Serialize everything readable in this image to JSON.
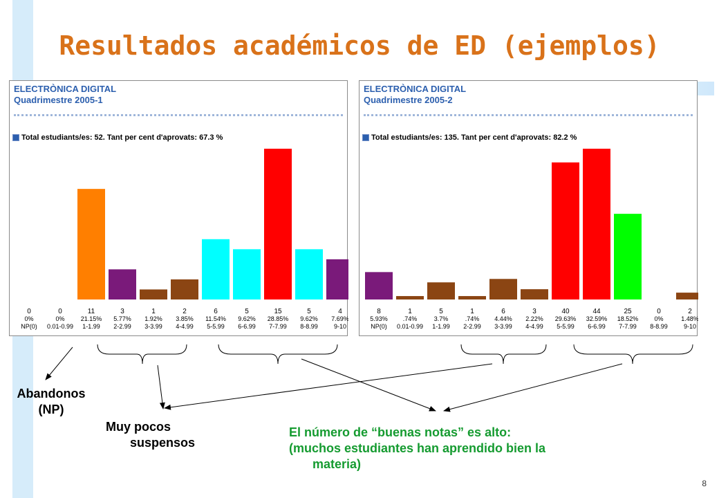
{
  "slide": {
    "title": "Resultados académicos de ED (ejemplos)",
    "page_number": "8"
  },
  "annotations": {
    "abandonos": "Abandonos",
    "np": "(NP)",
    "muy_pocos": "Muy pocos",
    "suspensos": "suspensos",
    "buenas_1": "El número de “buenas notas” es alto:",
    "buenas_2": "(muchos estudiantes han aprendido bien la",
    "buenas_3": "materia)"
  },
  "chart_data": [
    {
      "type": "bar",
      "title": "ELECTRÒNICA DIGITAL",
      "subtitle": "Quadrimestre 2005-1",
      "stats_text": "Total estudiants/es: 52. Tant per cent d'aprovats:  67.3 %",
      "categories": [
        "NP(0)",
        "0.01-0.99",
        "1-1.99",
        "2-2.99",
        "3-3.99",
        "4-4.99",
        "5-5.99",
        "6-6.99",
        "7-7.99",
        "8-8.99",
        "9-10"
      ],
      "values": [
        0,
        0,
        11,
        3,
        1,
        2,
        6,
        5,
        15,
        5,
        4
      ],
      "percents": [
        "0%",
        "0%",
        "21.15%",
        "5.77%",
        "1.92%",
        "3.85%",
        "11.54%",
        "9.62%",
        "28.85%",
        "9.62%",
        "7.69%"
      ],
      "colors": [
        "#7a1a7a",
        "#8b4513",
        "#ff7f00",
        "#7a1a7a",
        "#8b4513",
        "#8b4513",
        "#00ffff",
        "#00ffff",
        "#ff0000",
        "#00ffff",
        "#7a1a7a"
      ]
    },
    {
      "type": "bar",
      "title": "ELECTRÒNICA DIGITAL",
      "subtitle": "Quadrimestre 2005-2",
      "stats_text": "Total estudiants/es: 135. Tant per cent d'aprovats:  82.2 %",
      "categories": [
        "NP(0)",
        "0.01-0.99",
        "1-1.99",
        "2-2.99",
        "3-3.99",
        "4-4.99",
        "5-5.99",
        "6-6.99",
        "7-7.99",
        "8-8.99",
        "9-10"
      ],
      "values": [
        8,
        1,
        5,
        1,
        6,
        3,
        40,
        44,
        25,
        0,
        2
      ],
      "percents": [
        "5.93%",
        ".74%",
        "3.7%",
        ".74%",
        "4.44%",
        "2.22%",
        "29.63%",
        "32.59%",
        "18.52%",
        "0%",
        "1.48%"
      ],
      "colors": [
        "#7a1a7a",
        "#8b4513",
        "#8b4513",
        "#8b4513",
        "#8b4513",
        "#8b4513",
        "#ff0000",
        "#ff0000",
        "#00ff00",
        "#8b4513",
        "#8b4513"
      ]
    }
  ]
}
